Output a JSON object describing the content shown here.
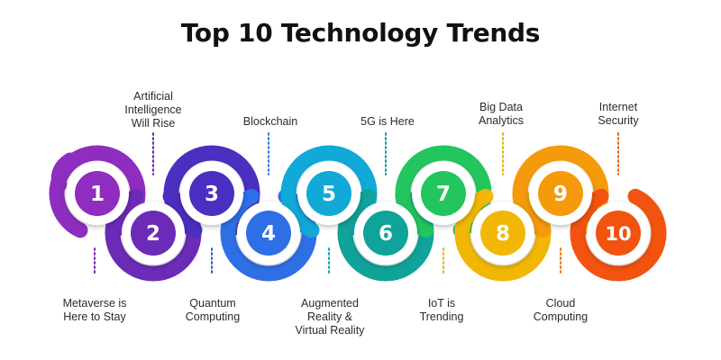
{
  "title": "Top 10 Technology Trends",
  "trends": [
    {
      "number": "1",
      "label": "Metaverse is Here to Stay",
      "color": "#8E2DBF",
      "dot_color": "#7A2AAE"
    },
    {
      "number": "2",
      "label": "Artificial Intelligence Will Rise",
      "color": "#6B2BB8",
      "dot_color": "#6A2DB6"
    },
    {
      "number": "3",
      "label": "Quantum Computing",
      "color": "#4A2FC0",
      "dot_color": "#3A5FC8"
    },
    {
      "number": "4",
      "label": "Blockchain",
      "color": "#2E6FE6",
      "dot_color": "#2F7FD6"
    },
    {
      "number": "5",
      "label": "Augmented Reality & Virtual Reality",
      "color": "#10A9D8",
      "dot_color": "#15A3C2"
    },
    {
      "number": "6",
      "label": "5G is Here",
      "color": "#0FA39A",
      "dot_color": "#0FA0A0"
    },
    {
      "number": "7",
      "label": "IoT is Trending",
      "color": "#22C55E",
      "dot_color": "#E3B90A"
    },
    {
      "number": "8",
      "label": "Big Data Analytics",
      "color": "#F2B705",
      "dot_color": "#E9B208"
    },
    {
      "number": "9",
      "label": "Cloud Computing",
      "color": "#F59A0B",
      "dot_color": "#EB7A1A"
    },
    {
      "number": "10",
      "label": "Internet Security",
      "color": "#F2530F",
      "dot_color": "#E96A1A"
    }
  ]
}
